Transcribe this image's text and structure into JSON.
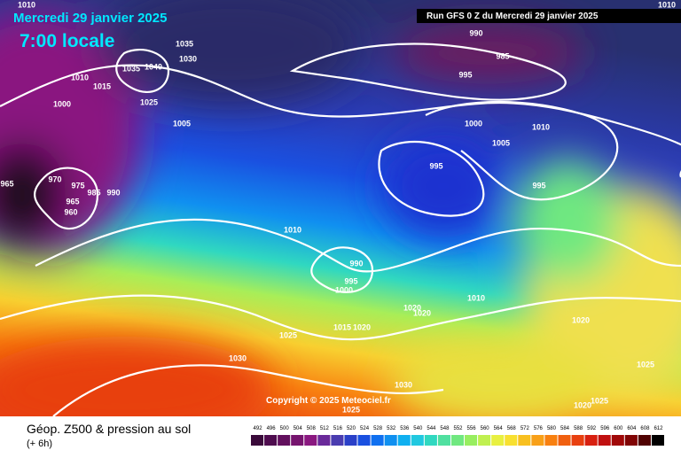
{
  "header": {
    "title": "Mercredi 29 janvier 2025",
    "time": "7:00 locale",
    "run": "Run GFS 0 Z du Mercredi 29 janvier 2025"
  },
  "map": {
    "isobar_labels": [
      1010,
      1035,
      1030,
      1035,
      1040,
      1010,
      1015,
      1000,
      1025,
      1005,
      965,
      970,
      975,
      985,
      990,
      965,
      960,
      1010,
      990,
      995,
      1000,
      990,
      985,
      995,
      1000,
      1010,
      1005,
      995,
      995,
      1010,
      1020,
      1020,
      1020,
      1015,
      1020,
      1025,
      1030,
      1025,
      1030,
      1025,
      1025,
      1020,
      1010
    ],
    "copyright": "Copyright © 2025 Meteociel.fr"
  },
  "footer": {
    "title": "Géop. Z500 & pression au sol",
    "subtitle": "(+ 6h)"
  },
  "colorbar": {
    "labels": [
      492,
      496,
      500,
      504,
      508,
      512,
      516,
      520,
      524,
      528,
      532,
      536,
      540,
      544,
      548,
      552,
      556,
      560,
      564,
      568,
      572,
      576,
      580,
      584,
      588,
      592,
      596,
      600,
      604,
      608,
      612
    ],
    "colors": [
      "#3a0a3a",
      "#4e0c4e",
      "#62105e",
      "#76146e",
      "#8a1880",
      "#6a2a9a",
      "#4a3cb0",
      "#2a40c8",
      "#1a50e0",
      "#1070f0",
      "#1090f0",
      "#10b0f0",
      "#20c8e0",
      "#30d8c0",
      "#50e0a0",
      "#70e880",
      "#98ee60",
      "#c0f050",
      "#e8f040",
      "#f8e030",
      "#f8c020",
      "#f8a018",
      "#f88010",
      "#f06010",
      "#e84010",
      "#d82010",
      "#c01010",
      "#a00808",
      "#800404",
      "#500202",
      "#000000"
    ]
  }
}
